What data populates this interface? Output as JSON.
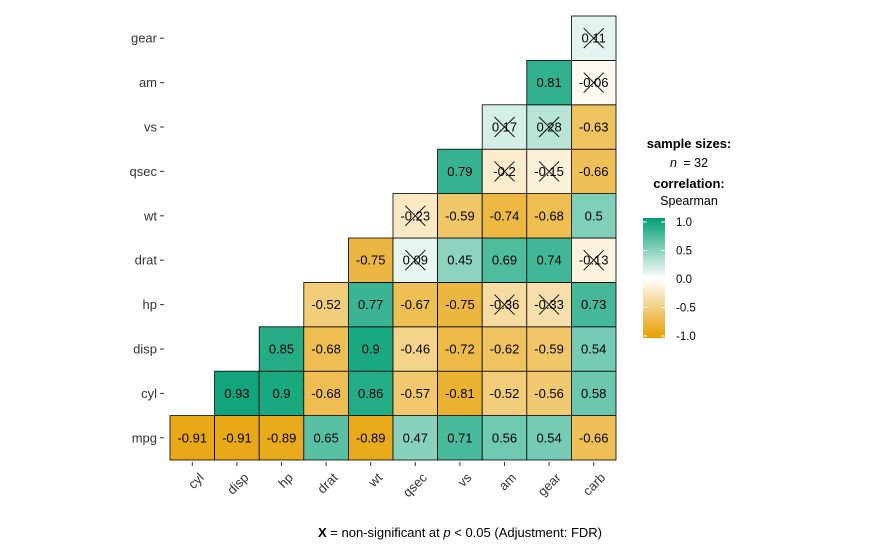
{
  "chart_data": {
    "type": "heatmap",
    "title": "",
    "xlabel": "",
    "ylabel": "",
    "x_categories": [
      "cyl",
      "disp",
      "hp",
      "drat",
      "wt",
      "qsec",
      "vs",
      "am",
      "gear",
      "carb"
    ],
    "y_categories": [
      "mpg",
      "cyl",
      "disp",
      "hp",
      "drat",
      "wt",
      "qsec",
      "vs",
      "am",
      "gear"
    ],
    "cells": [
      {
        "x": "cyl",
        "y": "mpg",
        "value": -0.91,
        "label": "-0.91",
        "non_significant": false
      },
      {
        "x": "disp",
        "y": "mpg",
        "value": -0.91,
        "label": "-0.91",
        "non_significant": false
      },
      {
        "x": "hp",
        "y": "mpg",
        "value": -0.89,
        "label": "-0.89",
        "non_significant": false
      },
      {
        "x": "drat",
        "y": "mpg",
        "value": 0.65,
        "label": "0.65",
        "non_significant": false
      },
      {
        "x": "wt",
        "y": "mpg",
        "value": -0.89,
        "label": "-0.89",
        "non_significant": false
      },
      {
        "x": "qsec",
        "y": "mpg",
        "value": 0.47,
        "label": "0.47",
        "non_significant": false
      },
      {
        "x": "vs",
        "y": "mpg",
        "value": 0.71,
        "label": "0.71",
        "non_significant": false
      },
      {
        "x": "am",
        "y": "mpg",
        "value": 0.56,
        "label": "0.56",
        "non_significant": false
      },
      {
        "x": "gear",
        "y": "mpg",
        "value": 0.54,
        "label": "0.54",
        "non_significant": false
      },
      {
        "x": "carb",
        "y": "mpg",
        "value": -0.66,
        "label": "-0.66",
        "non_significant": false
      },
      {
        "x": "disp",
        "y": "cyl",
        "value": 0.93,
        "label": "0.93",
        "non_significant": false
      },
      {
        "x": "hp",
        "y": "cyl",
        "value": 0.9,
        "label": "0.9",
        "non_significant": false
      },
      {
        "x": "drat",
        "y": "cyl",
        "value": -0.68,
        "label": "-0.68",
        "non_significant": false
      },
      {
        "x": "wt",
        "y": "cyl",
        "value": 0.86,
        "label": "0.86",
        "non_significant": false
      },
      {
        "x": "qsec",
        "y": "cyl",
        "value": -0.57,
        "label": "-0.57",
        "non_significant": false
      },
      {
        "x": "vs",
        "y": "cyl",
        "value": -0.81,
        "label": "-0.81",
        "non_significant": false
      },
      {
        "x": "am",
        "y": "cyl",
        "value": -0.52,
        "label": "-0.52",
        "non_significant": false
      },
      {
        "x": "gear",
        "y": "cyl",
        "value": -0.56,
        "label": "-0.56",
        "non_significant": false
      },
      {
        "x": "carb",
        "y": "cyl",
        "value": 0.58,
        "label": "0.58",
        "non_significant": false
      },
      {
        "x": "hp",
        "y": "disp",
        "value": 0.85,
        "label": "0.85",
        "non_significant": false
      },
      {
        "x": "drat",
        "y": "disp",
        "value": -0.68,
        "label": "-0.68",
        "non_significant": false
      },
      {
        "x": "wt",
        "y": "disp",
        "value": 0.9,
        "label": "0.9",
        "non_significant": false
      },
      {
        "x": "qsec",
        "y": "disp",
        "value": -0.46,
        "label": "-0.46",
        "non_significant": false
      },
      {
        "x": "vs",
        "y": "disp",
        "value": -0.72,
        "label": "-0.72",
        "non_significant": false
      },
      {
        "x": "am",
        "y": "disp",
        "value": -0.62,
        "label": "-0.62",
        "non_significant": false
      },
      {
        "x": "gear",
        "y": "disp",
        "value": -0.59,
        "label": "-0.59",
        "non_significant": false
      },
      {
        "x": "carb",
        "y": "disp",
        "value": 0.54,
        "label": "0.54",
        "non_significant": false
      },
      {
        "x": "drat",
        "y": "hp",
        "value": -0.52,
        "label": "-0.52",
        "non_significant": false
      },
      {
        "x": "wt",
        "y": "hp",
        "value": 0.77,
        "label": "0.77",
        "non_significant": false
      },
      {
        "x": "qsec",
        "y": "hp",
        "value": -0.67,
        "label": "-0.67",
        "non_significant": false
      },
      {
        "x": "vs",
        "y": "hp",
        "value": -0.75,
        "label": "-0.75",
        "non_significant": false
      },
      {
        "x": "am",
        "y": "hp",
        "value": -0.36,
        "label": "-0.36",
        "non_significant": true
      },
      {
        "x": "gear",
        "y": "hp",
        "value": -0.33,
        "label": "-0.33",
        "non_significant": true
      },
      {
        "x": "carb",
        "y": "hp",
        "value": 0.73,
        "label": "0.73",
        "non_significant": false
      },
      {
        "x": "wt",
        "y": "drat",
        "value": -0.75,
        "label": "-0.75",
        "non_significant": false
      },
      {
        "x": "qsec",
        "y": "drat",
        "value": 0.09,
        "label": "0.09",
        "non_significant": true
      },
      {
        "x": "vs",
        "y": "drat",
        "value": 0.45,
        "label": "0.45",
        "non_significant": false
      },
      {
        "x": "am",
        "y": "drat",
        "value": 0.69,
        "label": "0.69",
        "non_significant": false
      },
      {
        "x": "gear",
        "y": "drat",
        "value": 0.74,
        "label": "0.74",
        "non_significant": false
      },
      {
        "x": "carb",
        "y": "drat",
        "value": -0.13,
        "label": "-0.13",
        "non_significant": true
      },
      {
        "x": "qsec",
        "y": "wt",
        "value": -0.23,
        "label": "-0.23",
        "non_significant": true
      },
      {
        "x": "vs",
        "y": "wt",
        "value": -0.59,
        "label": "-0.59",
        "non_significant": false
      },
      {
        "x": "am",
        "y": "wt",
        "value": -0.74,
        "label": "-0.74",
        "non_significant": false
      },
      {
        "x": "gear",
        "y": "wt",
        "value": -0.68,
        "label": "-0.68",
        "non_significant": false
      },
      {
        "x": "carb",
        "y": "wt",
        "value": 0.5,
        "label": "0.5",
        "non_significant": false
      },
      {
        "x": "vs",
        "y": "qsec",
        "value": 0.79,
        "label": "0.79",
        "non_significant": false
      },
      {
        "x": "am",
        "y": "qsec",
        "value": -0.2,
        "label": "-0.2",
        "non_significant": true
      },
      {
        "x": "gear",
        "y": "qsec",
        "value": -0.15,
        "label": "-0.15",
        "non_significant": true
      },
      {
        "x": "carb",
        "y": "qsec",
        "value": -0.66,
        "label": "-0.66",
        "non_significant": false
      },
      {
        "x": "am",
        "y": "vs",
        "value": 0.17,
        "label": "0.17",
        "non_significant": true
      },
      {
        "x": "gear",
        "y": "vs",
        "value": 0.28,
        "label": "0.28",
        "non_significant": true
      },
      {
        "x": "carb",
        "y": "vs",
        "value": -0.63,
        "label": "-0.63",
        "non_significant": false
      },
      {
        "x": "gear",
        "y": "am",
        "value": 0.81,
        "label": "0.81",
        "non_significant": false
      },
      {
        "x": "carb",
        "y": "am",
        "value": -0.06,
        "label": "-0.06",
        "non_significant": true
      },
      {
        "x": "carb",
        "y": "gear",
        "value": 0.11,
        "label": "0.11",
        "non_significant": true
      }
    ],
    "color_scale": {
      "low": "#E69F00",
      "mid": "#FFFFFF",
      "high": "#009E73",
      "limits": [
        -1.0,
        1.0
      ]
    },
    "legend": {
      "position": "right",
      "title_sample": "sample sizes:",
      "n_label": "n",
      "n_value": "= 32",
      "title_correlation": "correlation:",
      "method": "Spearman",
      "ticks": [
        "1.0",
        "0.5",
        "0.0",
        "-0.5",
        "-1.0"
      ],
      "tick_values": [
        1.0,
        0.5,
        0.0,
        -0.5,
        -1.0
      ]
    },
    "caption": {
      "bold": "X",
      "part1": " = non-significant at ",
      "italic": "p",
      "part2": " < 0.05 (Adjustment: FDR)"
    },
    "grid": false
  }
}
